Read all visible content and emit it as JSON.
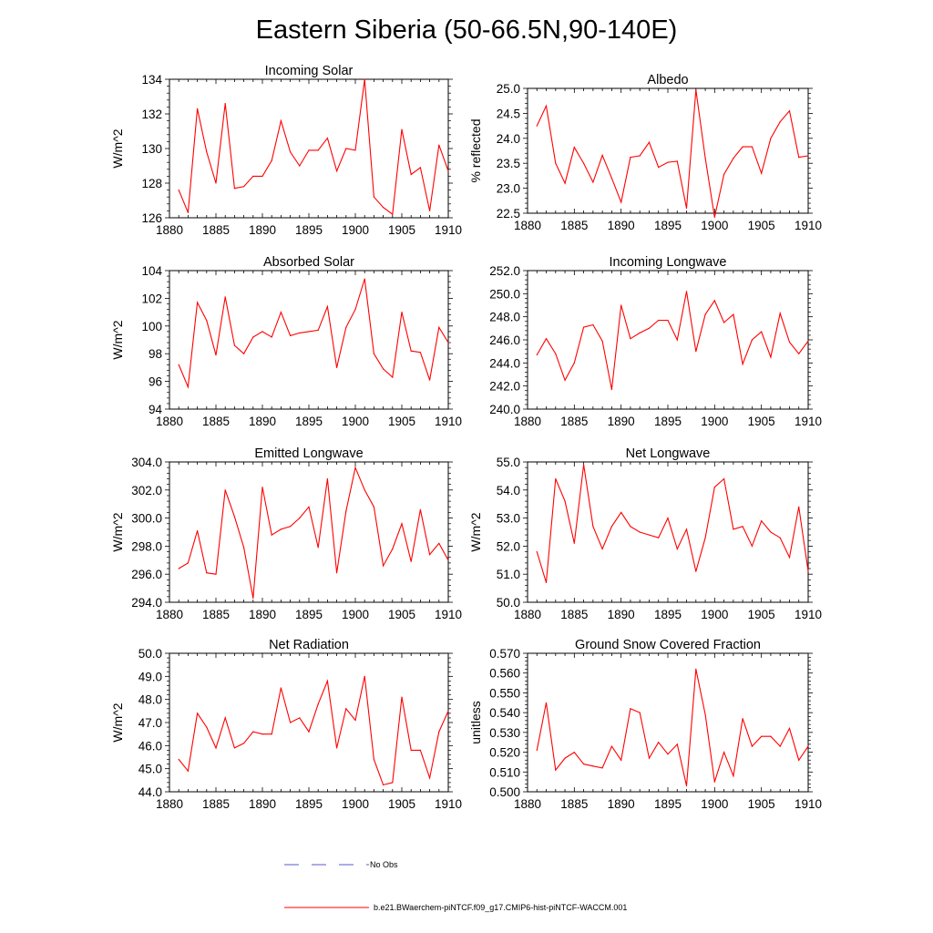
{
  "title": "Eastern Siberia (50-66.5N,90-140E)",
  "legend": [
    {
      "label": "No Obs",
      "color": "#5a5ad0",
      "dash": true
    },
    {
      "label": "b.e21.BWaerchem-piNTCF.f09_g17.CMIP6-hist-piNTCF-WACCM.001",
      "color": "#ff0000",
      "dash": false
    }
  ],
  "chart_data": [
    {
      "type": "line",
      "title": "Incoming Solar",
      "ylabel": "W/m^2",
      "xlim": [
        1880,
        1910
      ],
      "ylim": [
        126,
        134
      ],
      "xticks": [
        1880,
        1885,
        1890,
        1895,
        1900,
        1905,
        1910
      ],
      "yticks": [
        126,
        128,
        130,
        132,
        134
      ],
      "ytick_labels": [
        "126",
        "128",
        "130",
        "132",
        "134"
      ],
      "x": [
        1881,
        1882,
        1883,
        1884,
        1885,
        1886,
        1887,
        1888,
        1889,
        1890,
        1891,
        1892,
        1893,
        1894,
        1895,
        1896,
        1897,
        1898,
        1899,
        1900,
        1901,
        1902,
        1903,
        1904,
        1905,
        1906,
        1907,
        1908,
        1909,
        1910
      ],
      "series": [
        {
          "color": "#ff0000",
          "values": [
            127.6,
            126.3,
            132.3,
            129.8,
            128.0,
            132.6,
            127.7,
            127.8,
            128.4,
            128.4,
            129.3,
            131.6,
            129.8,
            129.0,
            129.9,
            129.9,
            130.6,
            128.7,
            130.0,
            129.9,
            134.0,
            127.2,
            126.6,
            126.2,
            131.1,
            128.5,
            128.9,
            126.4,
            130.2,
            128.7
          ]
        }
      ]
    },
    {
      "type": "line",
      "title": "Albedo",
      "ylabel": "% reflected",
      "xlim": [
        1880,
        1910
      ],
      "ylim": [
        22.5,
        25.0
      ],
      "xticks": [
        1880,
        1885,
        1890,
        1895,
        1900,
        1905,
        1910
      ],
      "yticks": [
        22.5,
        23.0,
        23.5,
        24.0,
        24.5,
        25.0
      ],
      "ytick_labels": [
        "22.5",
        "23.0",
        "23.5",
        "24.0",
        "24.5",
        "25.0"
      ],
      "x": [
        1881,
        1882,
        1883,
        1884,
        1885,
        1886,
        1887,
        1888,
        1889,
        1890,
        1891,
        1892,
        1893,
        1894,
        1895,
        1896,
        1897,
        1898,
        1899,
        1900,
        1901,
        1902,
        1903,
        1904,
        1905,
        1906,
        1907,
        1908,
        1909,
        1910
      ],
      "series": [
        {
          "color": "#ff0000",
          "values": [
            24.25,
            24.65,
            23.5,
            23.1,
            23.82,
            23.5,
            23.12,
            23.66,
            23.2,
            22.72,
            23.62,
            23.65,
            23.92,
            23.42,
            23.52,
            23.54,
            22.6,
            24.97,
            23.6,
            22.42,
            23.28,
            23.6,
            23.83,
            23.83,
            23.3,
            24.0,
            24.33,
            24.55,
            23.62,
            23.65
          ]
        }
      ]
    },
    {
      "type": "line",
      "title": "Absorbed Solar",
      "ylabel": "W/m^2",
      "xlim": [
        1880,
        1910
      ],
      "ylim": [
        94,
        104
      ],
      "xticks": [
        1880,
        1885,
        1890,
        1895,
        1900,
        1905,
        1910
      ],
      "yticks": [
        94,
        96,
        98,
        100,
        102,
        104
      ],
      "ytick_labels": [
        "94",
        "96",
        "98",
        "100",
        "102",
        "104"
      ],
      "x": [
        1881,
        1882,
        1883,
        1884,
        1885,
        1886,
        1887,
        1888,
        1889,
        1890,
        1891,
        1892,
        1893,
        1894,
        1895,
        1896,
        1897,
        1898,
        1899,
        1900,
        1901,
        1902,
        1903,
        1904,
        1905,
        1906,
        1907,
        1908,
        1909,
        1910
      ],
      "series": [
        {
          "color": "#ff0000",
          "values": [
            97.2,
            95.6,
            101.7,
            100.4,
            97.9,
            102.1,
            98.6,
            98.0,
            99.2,
            99.6,
            99.2,
            101.0,
            99.3,
            99.5,
            99.6,
            99.7,
            101.4,
            97.0,
            99.9,
            101.2,
            103.4,
            98.0,
            96.9,
            96.3,
            101.0,
            98.2,
            98.1,
            96.1,
            99.9,
            98.8
          ]
        }
      ]
    },
    {
      "type": "line",
      "title": "Incoming Longwave",
      "ylabel": "",
      "xlim": [
        1880,
        1910
      ],
      "ylim": [
        240,
        252
      ],
      "xticks": [
        1880,
        1885,
        1890,
        1895,
        1900,
        1905,
        1910
      ],
      "yticks": [
        240,
        242,
        244,
        246,
        248,
        250,
        252
      ],
      "ytick_labels": [
        "240.0",
        "242.0",
        "244.0",
        "246.0",
        "248.0",
        "250.0",
        "252.0"
      ],
      "x": [
        1881,
        1882,
        1883,
        1884,
        1885,
        1886,
        1887,
        1888,
        1889,
        1890,
        1891,
        1892,
        1893,
        1894,
        1895,
        1896,
        1897,
        1898,
        1899,
        1900,
        1901,
        1902,
        1903,
        1904,
        1905,
        1906,
        1907,
        1908,
        1909,
        1910
      ],
      "series": [
        {
          "color": "#ff0000",
          "values": [
            244.7,
            246.1,
            244.8,
            242.5,
            244.0,
            247.1,
            247.3,
            245.9,
            241.7,
            249.0,
            246.1,
            246.6,
            247.0,
            247.7,
            247.7,
            246.0,
            250.2,
            245.0,
            248.2,
            249.4,
            247.5,
            248.2,
            243.9,
            246.0,
            246.7,
            244.5,
            248.3,
            245.8,
            244.8,
            245.9
          ]
        }
      ]
    },
    {
      "type": "line",
      "title": "Emitted Longwave",
      "ylabel": "W/m^2",
      "xlim": [
        1880,
        1910
      ],
      "ylim": [
        294,
        304
      ],
      "xticks": [
        1880,
        1885,
        1890,
        1895,
        1900,
        1905,
        1910
      ],
      "yticks": [
        294,
        296,
        298,
        300,
        302,
        304
      ],
      "ytick_labels": [
        "294.0",
        "296.0",
        "298.0",
        "300.0",
        "302.0",
        "304.0"
      ],
      "x": [
        1881,
        1882,
        1883,
        1884,
        1885,
        1886,
        1887,
        1888,
        1889,
        1890,
        1891,
        1892,
        1893,
        1894,
        1895,
        1896,
        1897,
        1898,
        1899,
        1900,
        1901,
        1902,
        1903,
        1904,
        1905,
        1906,
        1907,
        1908,
        1909,
        1910
      ],
      "series": [
        {
          "color": "#ff0000",
          "values": [
            296.4,
            296.8,
            299.1,
            296.1,
            296.0,
            302.0,
            300.1,
            297.9,
            294.3,
            302.2,
            298.8,
            299.2,
            299.4,
            300.0,
            300.8,
            297.9,
            302.8,
            296.1,
            300.5,
            303.6,
            302.0,
            300.8,
            296.6,
            297.8,
            299.6,
            296.9,
            300.6,
            297.4,
            298.2,
            297.0
          ]
        }
      ]
    },
    {
      "type": "line",
      "title": "Net Longwave",
      "ylabel": "W/m^2",
      "xlim": [
        1880,
        1910
      ],
      "ylim": [
        50,
        55
      ],
      "xticks": [
        1880,
        1885,
        1890,
        1895,
        1900,
        1905,
        1910
      ],
      "yticks": [
        50,
        51,
        52,
        53,
        54,
        55
      ],
      "ytick_labels": [
        "50.0",
        "51.0",
        "52.0",
        "53.0",
        "54.0",
        "55.0"
      ],
      "x": [
        1881,
        1882,
        1883,
        1884,
        1885,
        1886,
        1887,
        1888,
        1889,
        1890,
        1891,
        1892,
        1893,
        1894,
        1895,
        1896,
        1897,
        1898,
        1899,
        1900,
        1901,
        1902,
        1903,
        1904,
        1905,
        1906,
        1907,
        1908,
        1909,
        1910
      ],
      "series": [
        {
          "color": "#ff0000",
          "values": [
            51.8,
            50.7,
            54.4,
            53.6,
            52.1,
            54.9,
            52.7,
            51.9,
            52.7,
            53.2,
            52.7,
            52.5,
            52.4,
            52.3,
            53.0,
            51.9,
            52.6,
            51.1,
            52.3,
            54.1,
            54.4,
            52.6,
            52.7,
            52.0,
            52.9,
            52.5,
            52.3,
            51.6,
            53.4,
            51.1
          ]
        }
      ]
    },
    {
      "type": "line",
      "title": "Net Radiation",
      "ylabel": "W/m^2",
      "xlim": [
        1880,
        1910
      ],
      "ylim": [
        44,
        50
      ],
      "xticks": [
        1880,
        1885,
        1890,
        1895,
        1900,
        1905,
        1910
      ],
      "yticks": [
        44,
        45,
        46,
        47,
        48,
        49,
        50
      ],
      "ytick_labels": [
        "44.0",
        "45.0",
        "46.0",
        "47.0",
        "48.0",
        "49.0",
        "50.0"
      ],
      "x": [
        1881,
        1882,
        1883,
        1884,
        1885,
        1886,
        1887,
        1888,
        1889,
        1890,
        1891,
        1892,
        1893,
        1894,
        1895,
        1896,
        1897,
        1898,
        1899,
        1900,
        1901,
        1902,
        1903,
        1904,
        1905,
        1906,
        1907,
        1908,
        1909,
        1910
      ],
      "series": [
        {
          "color": "#ff0000",
          "values": [
            45.4,
            44.9,
            47.4,
            46.8,
            45.9,
            47.2,
            45.9,
            46.1,
            46.6,
            46.5,
            46.5,
            48.5,
            47.0,
            47.2,
            46.6,
            47.8,
            48.8,
            45.9,
            47.6,
            47.1,
            49.0,
            45.4,
            44.3,
            44.4,
            48.1,
            45.8,
            45.8,
            44.6,
            46.6,
            47.5
          ]
        }
      ]
    },
    {
      "type": "line",
      "title": "Ground Snow Covered Fraction",
      "ylabel": "unitless",
      "xlim": [
        1880,
        1910
      ],
      "ylim": [
        0.5,
        0.57
      ],
      "xticks": [
        1880,
        1885,
        1890,
        1895,
        1900,
        1905,
        1910
      ],
      "yticks": [
        0.5,
        0.51,
        0.52,
        0.53,
        0.54,
        0.55,
        0.56,
        0.57
      ],
      "ytick_labels": [
        "0.500",
        "0.510",
        "0.520",
        "0.530",
        "0.540",
        "0.550",
        "0.560",
        "0.570"
      ],
      "x": [
        1881,
        1882,
        1883,
        1884,
        1885,
        1886,
        1887,
        1888,
        1889,
        1890,
        1891,
        1892,
        1893,
        1894,
        1895,
        1896,
        1897,
        1898,
        1899,
        1900,
        1901,
        1902,
        1903,
        1904,
        1905,
        1906,
        1907,
        1908,
        1909,
        1910
      ],
      "series": [
        {
          "color": "#ff0000",
          "values": [
            0.521,
            0.545,
            0.511,
            0.517,
            0.52,
            0.514,
            0.513,
            0.512,
            0.523,
            0.516,
            0.542,
            0.54,
            0.517,
            0.525,
            0.519,
            0.524,
            0.503,
            0.562,
            0.539,
            0.505,
            0.52,
            0.508,
            0.537,
            0.523,
            0.528,
            0.528,
            0.523,
            0.532,
            0.516,
            0.523
          ]
        }
      ]
    }
  ]
}
